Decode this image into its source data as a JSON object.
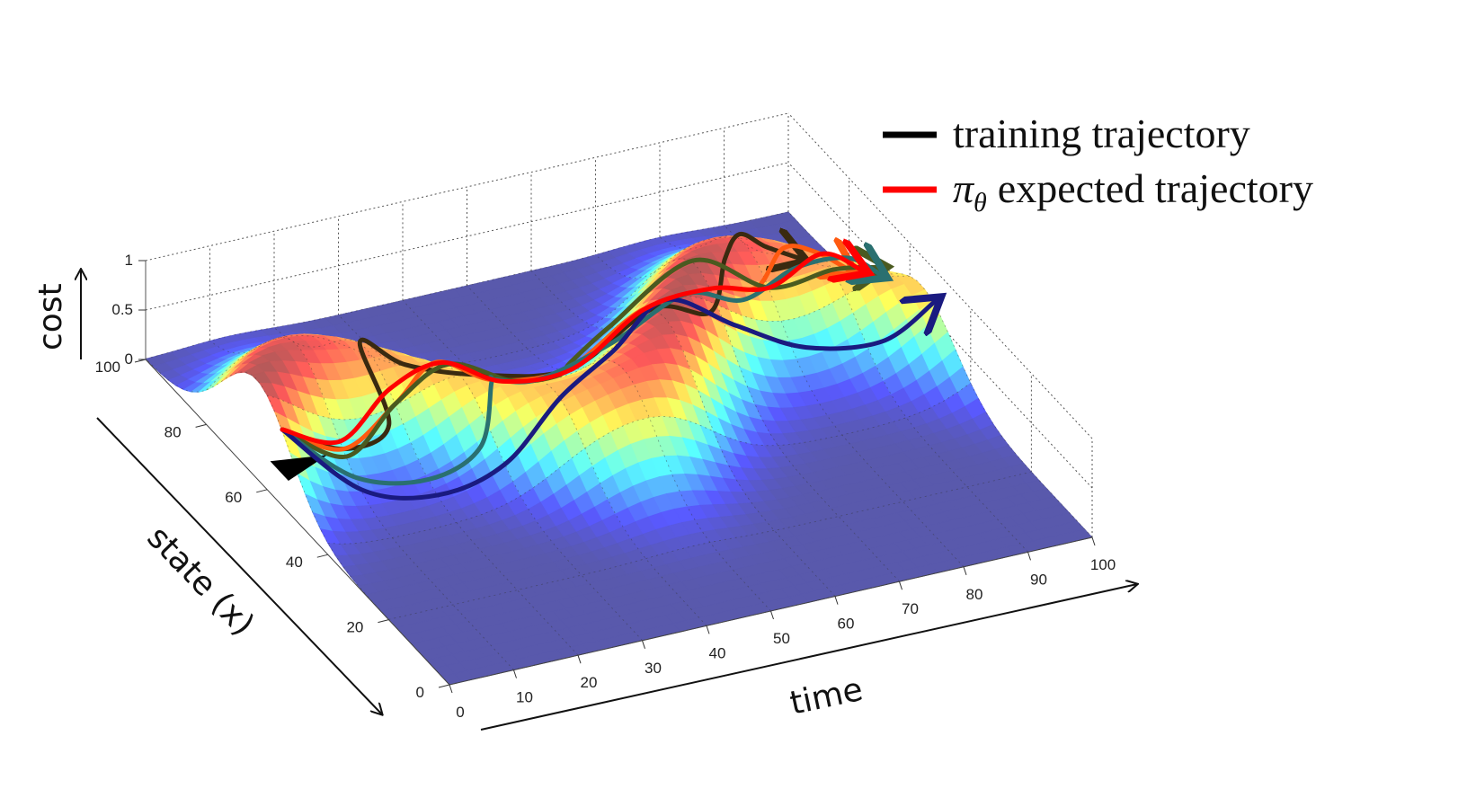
{
  "chart_data": {
    "type": "surface",
    "title": "",
    "xlabel": "time",
    "ylabel": "state (x)",
    "zlabel": "cost",
    "xlim": [
      0,
      100
    ],
    "ylim": [
      0,
      100
    ],
    "zlim": [
      0,
      1
    ],
    "x_ticks": [
      "0",
      "10",
      "20",
      "30",
      "40",
      "50",
      "60",
      "70",
      "80",
      "90",
      "100"
    ],
    "y_ticks": [
      "0",
      "20",
      "40",
      "60",
      "80",
      "100"
    ],
    "z_ticks": [
      "0",
      "0.5",
      "1"
    ],
    "grid": true,
    "colormap": "jet",
    "legend": {
      "placement": "top-right",
      "entries": [
        {
          "label": "training trajectory",
          "color": "#000000"
        },
        {
          "label": "expected trajectory",
          "prefix": "π",
          "subscript": "θ",
          "color": "#ff0000"
        }
      ]
    },
    "series": [
      {
        "type": "line",
        "style": "arrow",
        "color": "#3a2a10",
        "x": [
          0,
          10,
          18,
          22,
          30,
          40,
          50,
          60,
          68,
          75,
          82,
          88,
          94
        ],
        "y": [
          55,
          56,
          58,
          76,
          78,
          74,
          66,
          60,
          58,
          68,
          78,
          82,
          84
        ]
      },
      {
        "type": "line",
        "style": "arrow",
        "color": "#ff5a10",
        "x": [
          0,
          10,
          20,
          30,
          40,
          50,
          60,
          70,
          78,
          85,
          92,
          98
        ],
        "y": [
          55,
          56,
          60,
          68,
          70,
          67,
          64,
          62,
          64,
          70,
          74,
          76
        ]
      },
      {
        "type": "line",
        "style": "arrow",
        "color": "#4a5a20",
        "x": [
          0,
          10,
          20,
          30,
          40,
          47,
          52,
          60,
          70,
          80,
          90,
          98
        ],
        "y": [
          55,
          55,
          60,
          64,
          64,
          64,
          70,
          74,
          68,
          64,
          64,
          66
        ]
      },
      {
        "type": "line",
        "style": "arrow",
        "color": "#2a7070",
        "x": [
          0,
          10,
          20,
          28,
          33,
          38,
          45,
          55,
          65,
          75,
          85,
          94,
          100
        ],
        "y": [
          55,
          52,
          49,
          49,
          56,
          66,
          66,
          63,
          60,
          62,
          66,
          68,
          70
        ]
      },
      {
        "type": "line",
        "style": "arrow",
        "color": "#1a1a80",
        "x": [
          0,
          10,
          20,
          30,
          40,
          52,
          62,
          72,
          82,
          92,
          100
        ],
        "y": [
          55,
          50,
          46,
          45,
          48,
          56,
          60,
          58,
          56,
          52,
          52
        ]
      },
      {
        "type": "line",
        "style": "arrow",
        "color": "#ff0000",
        "x": [
          0,
          10,
          20,
          30,
          40,
          50,
          60,
          70,
          80,
          90,
          98
        ],
        "y": [
          55,
          57,
          62,
          66,
          67,
          65,
          63,
          62,
          64,
          68,
          72
        ]
      }
    ]
  }
}
